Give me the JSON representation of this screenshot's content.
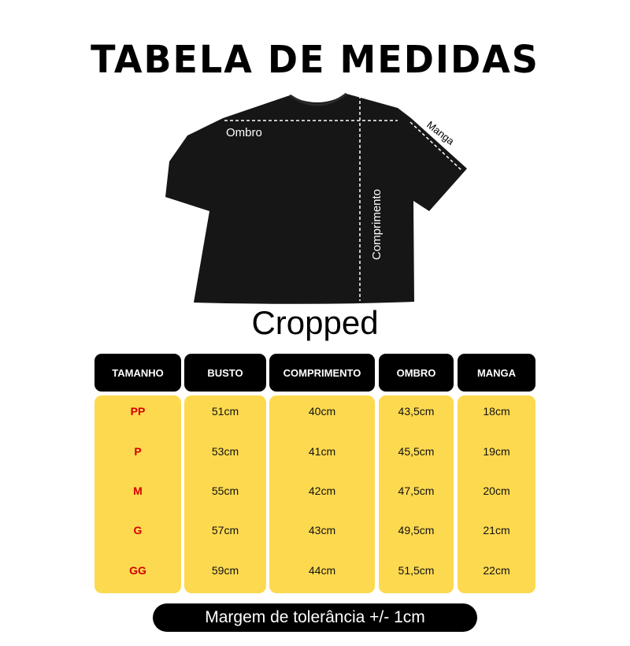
{
  "title": "TABELA DE MEDIDAS",
  "diagram": {
    "labels": {
      "shoulder": "Ombro",
      "sleeve": "Manga",
      "length": "Comprimento"
    }
  },
  "model": "Cropped",
  "table": {
    "headers": [
      "TAMANHO",
      "BUSTO",
      "COMPRIMENTO",
      "OMBRO",
      "MANGA"
    ],
    "rows": [
      [
        "PP",
        "51cm",
        "40cm",
        "43,5cm",
        "18cm"
      ],
      [
        "P",
        "53cm",
        "41cm",
        "45,5cm",
        "19cm"
      ],
      [
        "M",
        "55cm",
        "42cm",
        "47,5cm",
        "20cm"
      ],
      [
        "G",
        "57cm",
        "43cm",
        "49,5cm",
        "21cm"
      ],
      [
        "GG",
        "59cm",
        "44cm",
        "51,5cm",
        "22cm"
      ]
    ]
  },
  "footer": "Margem de tolerância +/- 1cm",
  "colors": {
    "header_bg": "#000000",
    "cell_bg": "#fdd94f",
    "size_text": "#d40000"
  }
}
